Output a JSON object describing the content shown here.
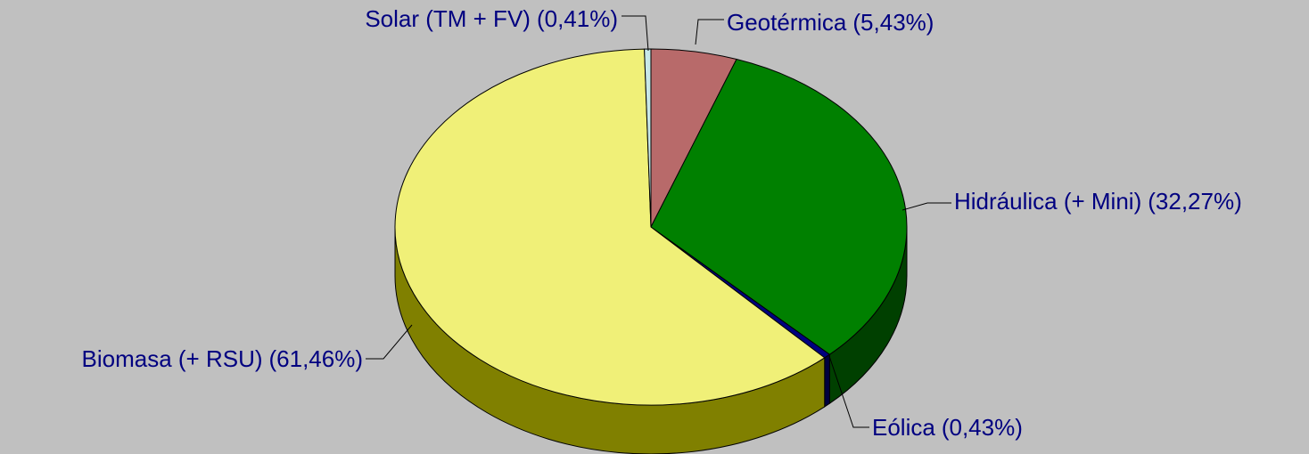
{
  "chart_data": {
    "type": "pie3d",
    "categories": [
      "Geotérmica",
      "Hidráulica (+ Mini)",
      "Eólica",
      "Biomasa (+ RSU)",
      "Solar (TM + FV)"
    ],
    "values": [
      5.43,
      32.27,
      0.43,
      61.46,
      0.41
    ],
    "value_labels": [
      "(5,43%)",
      "(32,27%)",
      "(0,43%)",
      "(61,46%)",
      "(0,41%)"
    ],
    "colors": [
      "#b86a6a",
      "#008000",
      "#000080",
      "#f0f078",
      "#c8e8e8"
    ],
    "side_colors": [
      "#7a3a3a",
      "#004000",
      "#000040",
      "#808000",
      "#809090"
    ]
  }
}
